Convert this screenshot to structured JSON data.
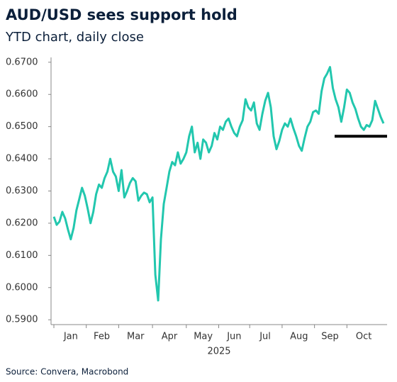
{
  "chart_data": {
    "type": "line",
    "title": "AUD/USD sees support hold",
    "subtitle": "YTD chart, daily close",
    "x_label": "2025",
    "source": "Source: Convera, Macrobond",
    "categories": [
      null,
      null,
      null,
      null,
      null,
      null,
      "Jan",
      null,
      null,
      null,
      null,
      null,
      null,
      null,
      null,
      null,
      null,
      "Feb",
      null,
      null,
      null,
      null,
      null,
      null,
      null,
      null,
      null,
      null,
      null,
      "Mar",
      null,
      null,
      null,
      null,
      null,
      null,
      null,
      null,
      null,
      null,
      null,
      "Apr",
      null,
      null,
      null,
      null,
      null,
      null,
      null,
      null,
      null,
      null,
      null,
      "May",
      null,
      null,
      null,
      null,
      null,
      null,
      null,
      null,
      null,
      null,
      "Jun",
      null,
      null,
      null,
      null,
      null,
      null,
      null,
      null,
      null,
      null,
      "Jul",
      null,
      null,
      null,
      null,
      null,
      null,
      null,
      null,
      null,
      null,
      null,
      "Aug",
      null,
      null,
      null,
      null,
      null,
      null,
      null,
      null,
      null,
      null,
      "Sep",
      null,
      null,
      null,
      null,
      null,
      null,
      null,
      null,
      null,
      null,
      null,
      "Oct",
      null,
      null,
      null,
      null,
      null,
      null,
      null
    ],
    "series": [
      {
        "color": "#22c7ae",
        "values": [
          0.622,
          0.6195,
          0.6205,
          0.6235,
          0.6215,
          0.618,
          0.615,
          0.6185,
          0.624,
          0.6275,
          0.631,
          0.6285,
          0.6245,
          0.62,
          0.6235,
          0.629,
          0.632,
          0.631,
          0.634,
          0.636,
          0.64,
          0.636,
          0.6345,
          0.63,
          0.6365,
          0.628,
          0.63,
          0.6325,
          0.634,
          0.633,
          0.627,
          0.6285,
          0.6295,
          0.629,
          0.6265,
          0.628,
          0.604,
          0.596,
          0.615,
          0.626,
          0.631,
          0.636,
          0.639,
          0.638,
          0.642,
          0.6385,
          0.64,
          0.642,
          0.647,
          0.65,
          0.642,
          0.645,
          0.64,
          0.646,
          0.645,
          0.642,
          0.644,
          0.648,
          0.646,
          0.65,
          0.649,
          0.6515,
          0.6525,
          0.65,
          0.648,
          0.647,
          0.65,
          0.652,
          0.6585,
          0.656,
          0.655,
          0.6575,
          0.651,
          0.649,
          0.654,
          0.658,
          0.6605,
          0.656,
          0.647,
          0.643,
          0.6455,
          0.649,
          0.651,
          0.65,
          0.6525,
          0.6495,
          0.647,
          0.644,
          0.6425,
          0.6465,
          0.65,
          0.6515,
          0.6545,
          0.655,
          0.654,
          0.661,
          0.665,
          0.6665,
          0.6685,
          0.662,
          0.6585,
          0.656,
          0.6515,
          0.656,
          0.6615,
          0.6605,
          0.6575,
          0.6555,
          0.6525,
          0.65,
          0.649,
          0.6505,
          0.65,
          0.652,
          0.658,
          0.6555,
          0.653,
          0.651
        ]
      }
    ],
    "support_level": 0.647,
    "support_color": "#000000",
    "ylim": [
      0.5885,
      0.6715
    ],
    "yticks": [
      {
        "value": 0.59,
        "label": "0.5900"
      },
      {
        "value": 0.6,
        "label": "0.6000"
      },
      {
        "value": 0.61,
        "label": "0.6100"
      },
      {
        "value": 0.62,
        "label": "0.6200"
      },
      {
        "value": 0.63,
        "label": "0.6300"
      },
      {
        "value": 0.64,
        "label": "0.6400"
      },
      {
        "value": 0.65,
        "label": "0.6500"
      },
      {
        "value": 0.66,
        "label": "0.6600"
      },
      {
        "value": 0.67,
        "label": "0.6700"
      }
    ],
    "grid": false
  }
}
